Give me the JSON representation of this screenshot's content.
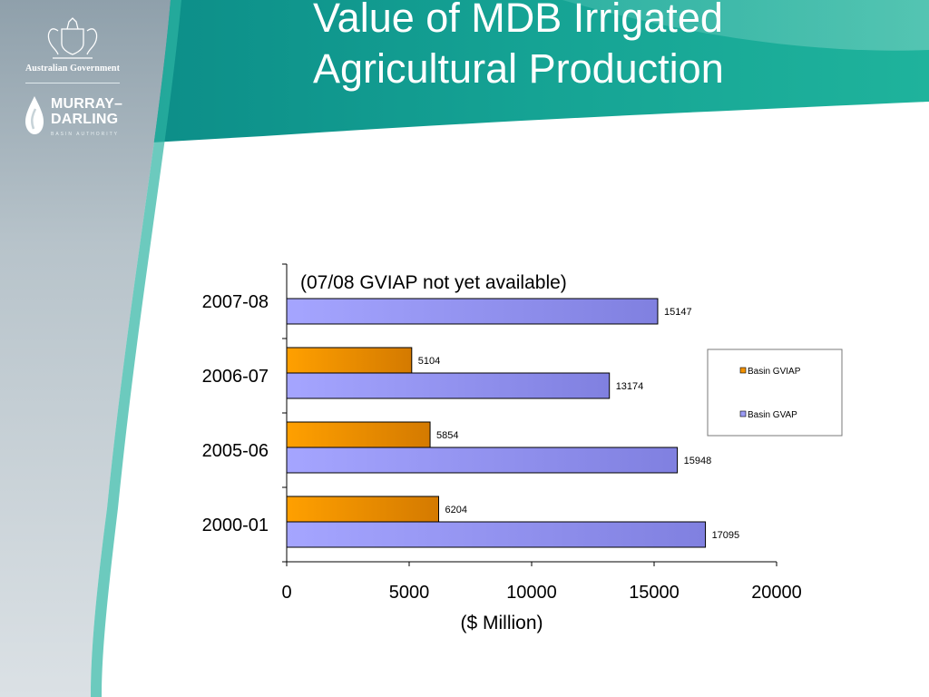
{
  "slide": {
    "title_line1": "Value of MDB Irrigated",
    "title_line2": "Agricultural Production"
  },
  "branding": {
    "government": "Australian Government",
    "authority_line1": "MURRAY–",
    "authority_line2": "DARLING",
    "authority_line3": "BASIN AUTHORITY"
  },
  "colors": {
    "gviap": "#f39200",
    "gvap": "#9c9cf5",
    "teal": "#14a08f"
  },
  "chart_data": {
    "type": "bar",
    "orientation": "horizontal",
    "categories": [
      "2000-01",
      "2005-06",
      "2006-07",
      "2007-08"
    ],
    "series": [
      {
        "name": "Basin GVIAP",
        "values": [
          6204,
          5854,
          5104,
          null
        ]
      },
      {
        "name": "Basin GVAP",
        "values": [
          17095,
          15948,
          13174,
          15147
        ]
      }
    ],
    "xlabel": "($ Million)",
    "ylabel": "",
    "xlim": [
      0,
      20000
    ],
    "xticks": [
      0,
      5000,
      10000,
      15000,
      20000
    ],
    "annotation": "(07/08 GVIAP not yet available)",
    "legend_position": "right",
    "grid": false
  }
}
